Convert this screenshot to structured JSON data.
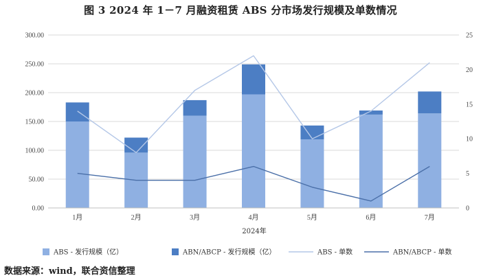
{
  "title": "图 3   2024 年 1－7 月融资租赁 ABS 分市场发行规模及单数情况",
  "source": "数据来源：wind，联合资信整理",
  "colors": {
    "abs_bar": "#8FB0E2",
    "abn_bar": "#4C7EC4",
    "abs_line": "#B4C7E7",
    "abn_line": "#4A6FA8",
    "grid": "#D9D9D9"
  },
  "chart_data": {
    "type": "bar",
    "categories": [
      "1月",
      "2月",
      "3月",
      "4月",
      "5月",
      "6月",
      "7月"
    ],
    "xlabel": "2024年",
    "y_left": {
      "min": 0,
      "max": 300,
      "ticks": [
        "0.00",
        "50.00",
        "100.00",
        "150.00",
        "200.00",
        "250.00",
        "300.00"
      ],
      "tick_values": [
        0,
        50,
        100,
        150,
        200,
        250,
        300
      ]
    },
    "y_right": {
      "min": 0,
      "max": 25,
      "ticks": [
        "0",
        "5",
        "10",
        "15",
        "20",
        "25"
      ],
      "tick_values": [
        0,
        5,
        10,
        15,
        20,
        25
      ]
    },
    "grid": true,
    "legend_position": "bottom",
    "series": [
      {
        "name": "ABS - 发行规模（亿）",
        "kind": "bar-stack-bottom",
        "axis": "left",
        "values": [
          150,
          96,
          160,
          197,
          119,
          162,
          164
        ]
      },
      {
        "name": "ABN/ABCP - 发行规模（亿）",
        "kind": "bar-stack-top",
        "axis": "left",
        "values": [
          33,
          26,
          27,
          52,
          24,
          7,
          38
        ]
      },
      {
        "name": "ABS - 单数",
        "kind": "line",
        "axis": "right",
        "values": [
          14,
          8,
          17,
          22,
          10,
          14,
          21
        ]
      },
      {
        "name": "ABN/ABCP - 单数",
        "kind": "line",
        "axis": "right",
        "values": [
          5,
          4,
          4,
          6,
          3,
          1,
          6
        ]
      }
    ]
  }
}
